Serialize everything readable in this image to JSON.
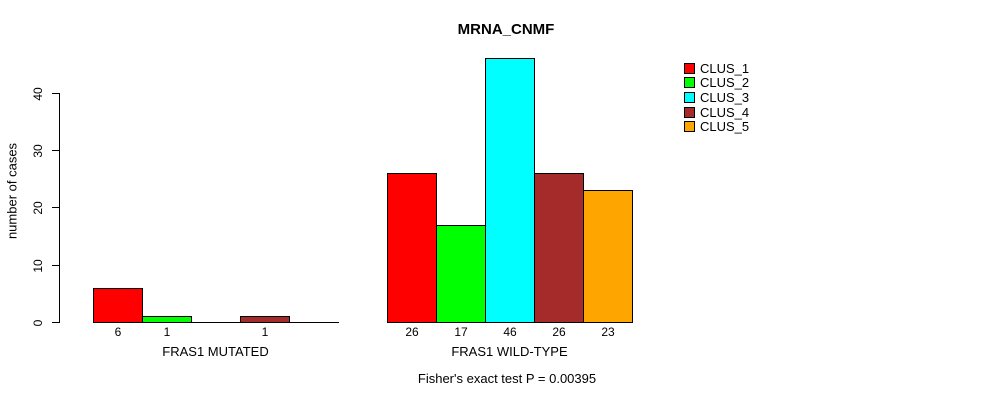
{
  "chart_data": {
    "type": "bar",
    "title": "MRNA_CNMF",
    "ylabel": "number of cases",
    "yticks": [
      0,
      10,
      20,
      30,
      40
    ],
    "ylim": [
      0,
      46
    ],
    "grid": false,
    "legend_position": "top-right",
    "bar_value_labels": true,
    "categories": [
      "FRAS1 MUTATED",
      "FRAS1 WILD-TYPE"
    ],
    "series": [
      {
        "name": "CLUS_1",
        "color": "#FF0000",
        "values": [
          6,
          26
        ]
      },
      {
        "name": "CLUS_2",
        "color": "#00FF00",
        "values": [
          1,
          17
        ]
      },
      {
        "name": "CLUS_3",
        "color": "#00FFFF",
        "values": [
          0,
          46
        ]
      },
      {
        "name": "CLUS_4",
        "color": "#A52A2A",
        "values": [
          1,
          26
        ]
      },
      {
        "name": "CLUS_5",
        "color": "#FFA500",
        "values": [
          0,
          23
        ]
      }
    ],
    "annotation": "Fisher's exact test P = 0.00395"
  }
}
